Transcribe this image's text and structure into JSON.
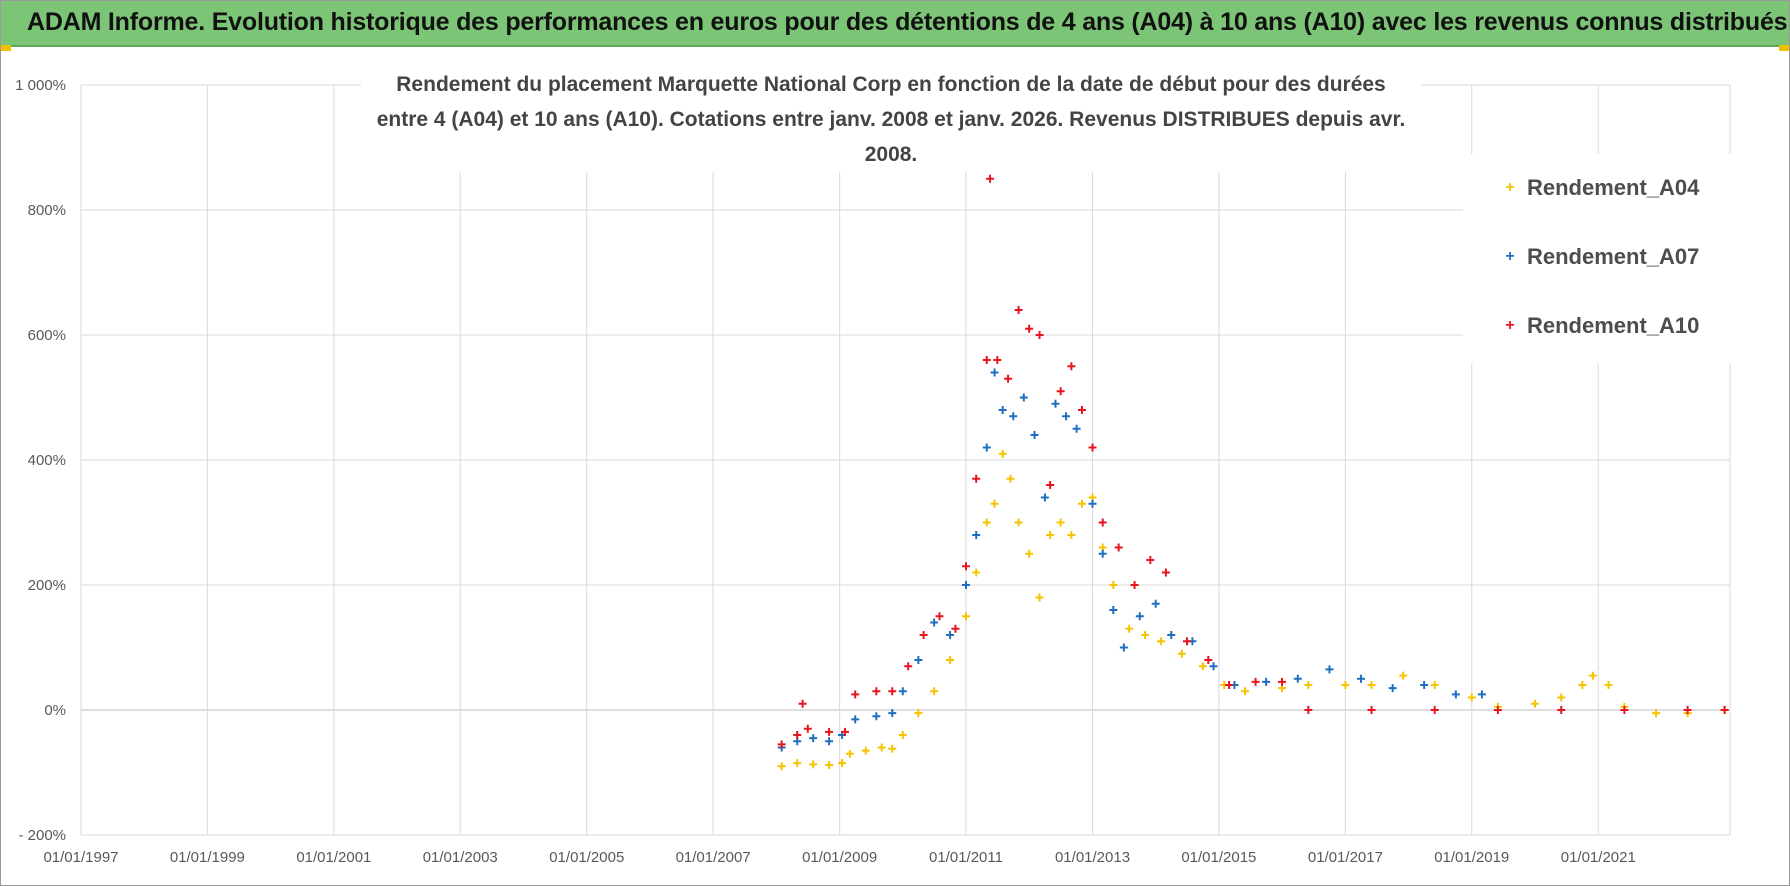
{
  "header": {
    "title": "ADAM Informe. Evolution historique des performances en euros pour des détentions de 4 ans (A04) à 10 ans (A10) avec les revenus connus distribués"
  },
  "colors": {
    "banner": "#7cc576",
    "A04": "#f5c400",
    "A07": "#1f6fc0",
    "A10": "#e8141e",
    "grid": "#d9d9d9",
    "axis_text": "#595959"
  },
  "chart_data": {
    "type": "scatter",
    "title_lines": [
      "Rendement du placement Marquette National Corp en fonction de la date de début pour des durées",
      "entre 4 (A04) et 10 ans (A10).  Cotations entre janv. 2008 et janv. 2026. Revenus DISTRIBUES depuis avr. 2008."
    ],
    "x_tick_labels": [
      "01/01/1997",
      "01/01/1999",
      "01/01/2001",
      "01/01/2003",
      "01/01/2005",
      "01/01/2007",
      "01/01/2009",
      "01/01/2011",
      "01/01/2013",
      "01/01/2015",
      "01/01/2017",
      "01/01/2019",
      "01/01/2021"
    ],
    "y_tick_labels": [
      "- 200%",
      "0%",
      "200%",
      "400%",
      "600%",
      "800%",
      "1 000%"
    ],
    "xlim": [
      "1997-01-01",
      "2023-02-01"
    ],
    "ylim": [
      -200,
      1000
    ],
    "y_unit": "%",
    "grid": true,
    "legend_position": "top-right",
    "marker": "+",
    "series": [
      {
        "name": "Rendement_A04",
        "color": "#f5c400",
        "points": [
          [
            "2008-02-01",
            -90
          ],
          [
            "2008-05-01",
            -85
          ],
          [
            "2008-08-01",
            -87
          ],
          [
            "2008-11-01",
            -88
          ],
          [
            "2009-01-15",
            -85
          ],
          [
            "2009-03-01",
            -70
          ],
          [
            "2009-06-01",
            -65
          ],
          [
            "2009-09-01",
            -60
          ],
          [
            "2009-11-01",
            -62
          ],
          [
            "2010-01-01",
            -40
          ],
          [
            "2010-04-01",
            -5
          ],
          [
            "2010-07-01",
            30
          ],
          [
            "2010-10-01",
            80
          ],
          [
            "2011-01-01",
            150
          ],
          [
            "2011-03-01",
            220
          ],
          [
            "2011-05-01",
            300
          ],
          [
            "2011-06-15",
            330
          ],
          [
            "2011-08-01",
            410
          ],
          [
            "2011-09-15",
            370
          ],
          [
            "2011-11-01",
            300
          ],
          [
            "2012-01-01",
            250
          ],
          [
            "2012-03-01",
            180
          ],
          [
            "2012-05-01",
            280
          ],
          [
            "2012-07-01",
            300
          ],
          [
            "2012-09-01",
            280
          ],
          [
            "2012-11-01",
            330
          ],
          [
            "2013-01-01",
            340
          ],
          [
            "2013-03-01",
            260
          ],
          [
            "2013-05-01",
            200
          ],
          [
            "2013-08-01",
            130
          ],
          [
            "2013-11-01",
            120
          ],
          [
            "2014-02-01",
            110
          ],
          [
            "2014-06-01",
            90
          ],
          [
            "2014-10-01",
            70
          ],
          [
            "2015-02-01",
            40
          ],
          [
            "2015-06-01",
            30
          ],
          [
            "2016-01-01",
            35
          ],
          [
            "2016-06-01",
            40
          ],
          [
            "2017-01-01",
            40
          ],
          [
            "2017-06-01",
            40
          ],
          [
            "2017-12-01",
            55
          ],
          [
            "2018-06-01",
            40
          ],
          [
            "2019-01-01",
            20
          ],
          [
            "2019-06-01",
            5
          ],
          [
            "2020-01-01",
            10
          ],
          [
            "2020-06-01",
            20
          ],
          [
            "2020-10-01",
            40
          ],
          [
            "2020-12-01",
            55
          ],
          [
            "2021-03-01",
            40
          ],
          [
            "2021-06-01",
            5
          ],
          [
            "2021-12-01",
            -5
          ],
          [
            "2022-06-01",
            -5
          ],
          [
            "2023-01-01",
            0
          ]
        ]
      },
      {
        "name": "Rendement_A07",
        "color": "#1f6fc0",
        "points": [
          [
            "2008-02-01",
            -60
          ],
          [
            "2008-05-01",
            -50
          ],
          [
            "2008-08-01",
            -45
          ],
          [
            "2008-11-01",
            -50
          ],
          [
            "2009-01-15",
            -40
          ],
          [
            "2009-04-01",
            -15
          ],
          [
            "2009-08-01",
            -10
          ],
          [
            "2009-11-01",
            -5
          ],
          [
            "2010-01-01",
            30
          ],
          [
            "2010-04-01",
            80
          ],
          [
            "2010-07-01",
            140
          ],
          [
            "2010-10-01",
            120
          ],
          [
            "2011-01-01",
            200
          ],
          [
            "2011-03-01",
            280
          ],
          [
            "2011-05-01",
            420
          ],
          [
            "2011-06-15",
            540
          ],
          [
            "2011-08-01",
            480
          ],
          [
            "2011-10-01",
            470
          ],
          [
            "2011-12-01",
            500
          ],
          [
            "2012-02-01",
            440
          ],
          [
            "2012-04-01",
            340
          ],
          [
            "2012-06-01",
            490
          ],
          [
            "2012-08-01",
            470
          ],
          [
            "2012-10-01",
            450
          ],
          [
            "2013-01-01",
            330
          ],
          [
            "2013-03-01",
            250
          ],
          [
            "2013-05-01",
            160
          ],
          [
            "2013-07-01",
            100
          ],
          [
            "2013-10-01",
            150
          ],
          [
            "2014-01-01",
            170
          ],
          [
            "2014-04-01",
            120
          ],
          [
            "2014-08-01",
            110
          ],
          [
            "2014-12-01",
            70
          ],
          [
            "2015-04-01",
            40
          ],
          [
            "2015-10-01",
            45
          ],
          [
            "2016-04-01",
            50
          ],
          [
            "2016-10-01",
            65
          ],
          [
            "2017-04-01",
            50
          ],
          [
            "2017-10-01",
            35
          ],
          [
            "2018-04-01",
            40
          ],
          [
            "2018-10-01",
            25
          ],
          [
            "2019-03-01",
            25
          ]
        ]
      },
      {
        "name": "Rendement_A10",
        "color": "#e8141e",
        "points": [
          [
            "2008-02-01",
            -55
          ],
          [
            "2008-05-01",
            -40
          ],
          [
            "2008-06-01",
            10
          ],
          [
            "2008-07-01",
            -30
          ],
          [
            "2008-11-01",
            -35
          ],
          [
            "2009-02-01",
            -35
          ],
          [
            "2009-04-01",
            25
          ],
          [
            "2009-08-01",
            30
          ],
          [
            "2009-11-01",
            30
          ],
          [
            "2010-02-01",
            70
          ],
          [
            "2010-05-01",
            120
          ],
          [
            "2010-08-01",
            150
          ],
          [
            "2010-11-01",
            130
          ],
          [
            "2011-01-01",
            230
          ],
          [
            "2011-03-01",
            370
          ],
          [
            "2011-05-01",
            560
          ],
          [
            "2011-05-20",
            850
          ],
          [
            "2011-07-01",
            560
          ],
          [
            "2011-09-01",
            530
          ],
          [
            "2011-11-01",
            640
          ],
          [
            "2012-01-01",
            610
          ],
          [
            "2012-03-01",
            600
          ],
          [
            "2012-05-01",
            360
          ],
          [
            "2012-07-01",
            510
          ],
          [
            "2012-09-01",
            550
          ],
          [
            "2012-11-01",
            480
          ],
          [
            "2013-01-01",
            420
          ],
          [
            "2013-03-01",
            300
          ],
          [
            "2013-06-01",
            260
          ],
          [
            "2013-09-01",
            200
          ],
          [
            "2013-12-01",
            240
          ],
          [
            "2014-03-01",
            220
          ],
          [
            "2014-07-01",
            110
          ],
          [
            "2014-11-01",
            80
          ],
          [
            "2015-03-01",
            40
          ],
          [
            "2015-08-01",
            45
          ],
          [
            "2016-01-01",
            45
          ],
          [
            "2016-06-01",
            0
          ],
          [
            "2017-06-01",
            0
          ],
          [
            "2018-06-01",
            0
          ],
          [
            "2019-06-01",
            0
          ],
          [
            "2020-06-01",
            0
          ],
          [
            "2021-06-01",
            0
          ],
          [
            "2022-06-01",
            0
          ],
          [
            "2023-01-01",
            0
          ]
        ]
      }
    ]
  }
}
